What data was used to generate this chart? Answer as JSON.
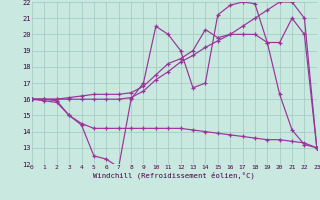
{
  "xlabel": "Windchill (Refroidissement éolien,°C)",
  "bg_color": "#c8e8e0",
  "line_color": "#993399",
  "grid_color": "#a0c8c0",
  "xlim": [
    0,
    23
  ],
  "ylim": [
    12,
    22
  ],
  "xticks": [
    0,
    1,
    2,
    3,
    4,
    5,
    6,
    7,
    8,
    9,
    10,
    11,
    12,
    13,
    14,
    15,
    16,
    17,
    18,
    19,
    20,
    21,
    22,
    23
  ],
  "yticks": [
    12,
    13,
    14,
    15,
    16,
    17,
    18,
    19,
    20,
    21,
    22
  ],
  "series": [
    {
      "x": [
        0,
        1,
        2,
        3,
        4,
        5,
        6,
        7,
        8,
        9,
        10,
        11,
        12,
        13,
        14,
        15,
        16,
        17,
        18,
        19,
        20,
        21,
        22,
        23
      ],
      "y": [
        16.0,
        15.9,
        15.8,
        15.0,
        14.4,
        12.5,
        12.3,
        11.8,
        16.0,
        17.0,
        20.5,
        20.0,
        19.0,
        16.7,
        17.0,
        21.2,
        21.8,
        22.0,
        21.9,
        19.5,
        16.3,
        14.1,
        13.2,
        13.0
      ]
    },
    {
      "x": [
        0,
        1,
        2,
        3,
        4,
        5,
        6,
        7,
        8,
        9,
        10,
        11,
        12,
        13,
        14,
        15,
        16,
        17,
        18,
        19,
        20,
        21,
        22,
        23
      ],
      "y": [
        16.0,
        16.0,
        15.9,
        15.0,
        14.5,
        14.2,
        14.2,
        14.2,
        14.2,
        14.2,
        14.2,
        14.2,
        14.2,
        14.1,
        14.0,
        13.9,
        13.8,
        13.7,
        13.6,
        13.5,
        13.5,
        13.4,
        13.3,
        13.0
      ]
    },
    {
      "x": [
        0,
        1,
        2,
        3,
        4,
        5,
        6,
        7,
        8,
        9,
        10,
        11,
        12,
        13,
        14,
        15,
        16,
        17,
        18,
        19,
        20,
        21,
        22,
        23
      ],
      "y": [
        16.0,
        16.0,
        16.0,
        16.0,
        16.0,
        16.0,
        16.0,
        16.0,
        16.1,
        16.5,
        17.2,
        17.7,
        18.3,
        18.7,
        19.2,
        19.6,
        20.0,
        20.5,
        21.0,
        21.5,
        22.0,
        22.0,
        21.0,
        13.0
      ]
    },
    {
      "x": [
        0,
        1,
        2,
        3,
        4,
        5,
        6,
        7,
        8,
        9,
        10,
        11,
        12,
        13,
        14,
        15,
        16,
        17,
        18,
        19,
        20,
        21,
        22,
        23
      ],
      "y": [
        16.0,
        16.0,
        16.0,
        16.1,
        16.2,
        16.3,
        16.3,
        16.3,
        16.4,
        16.8,
        17.5,
        18.2,
        18.5,
        19.0,
        20.3,
        19.8,
        20.0,
        20.0,
        20.0,
        19.5,
        19.5,
        21.0,
        20.0,
        13.0
      ]
    }
  ]
}
